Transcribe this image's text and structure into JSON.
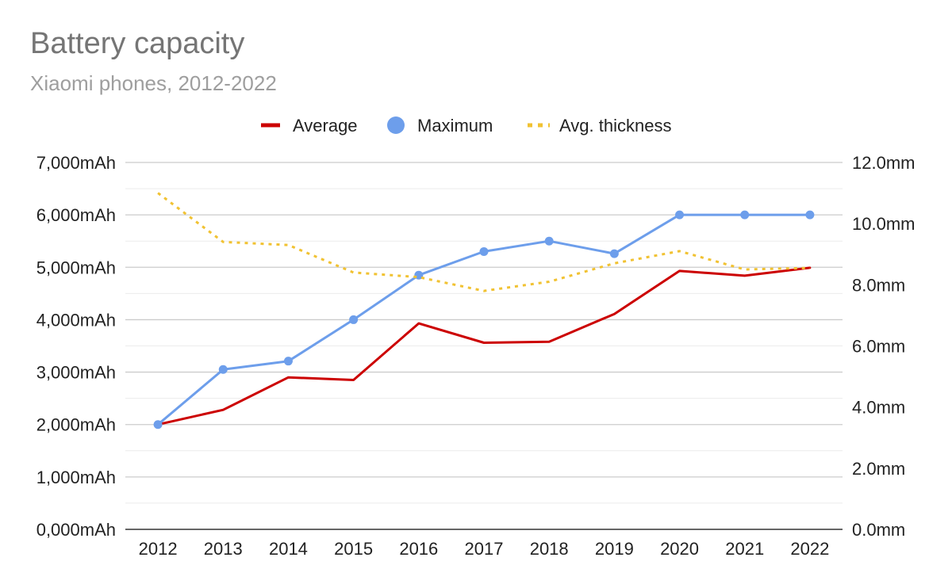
{
  "chart_data": {
    "type": "line",
    "title": "Battery capacity",
    "subtitle": "Xiaomi phones, 2012-2022",
    "categories": [
      "2012",
      "2013",
      "2014",
      "2015",
      "2016",
      "2017",
      "2018",
      "2019",
      "2020",
      "2021",
      "2022"
    ],
    "series": [
      {
        "name": "Average",
        "axis": "left",
        "style": "solid",
        "color": "#cc0000",
        "values": [
          2000,
          2280,
          2900,
          2850,
          3930,
          3560,
          3580,
          4110,
          4930,
          4840,
          4990
        ]
      },
      {
        "name": "Maximum",
        "axis": "left",
        "style": "solid-markers",
        "color": "#6d9eeb",
        "values": [
          2000,
          3050,
          3210,
          4000,
          4850,
          5300,
          5500,
          5260,
          6000,
          6000,
          6000
        ]
      },
      {
        "name": "Avg. thickness",
        "axis": "right",
        "style": "dotted",
        "color": "#f1c232",
        "values": [
          11.0,
          9.4,
          9.3,
          8.4,
          8.25,
          7.8,
          8.1,
          8.7,
          9.1,
          8.5,
          8.55
        ]
      }
    ],
    "y_left": {
      "min": 0,
      "max": 7000,
      "ticks": [
        {
          "value": 0,
          "label": "0,000mAh"
        },
        {
          "value": 1000,
          "label": "1,000mAh"
        },
        {
          "value": 2000,
          "label": "2,000mAh"
        },
        {
          "value": 3000,
          "label": "3,000mAh"
        },
        {
          "value": 4000,
          "label": "4,000mAh"
        },
        {
          "value": 5000,
          "label": "5,000mAh"
        },
        {
          "value": 6000,
          "label": "6,000mAh"
        },
        {
          "value": 7000,
          "label": "7,000mAh"
        }
      ]
    },
    "y_right": {
      "min": 0,
      "max": 12,
      "ticks": [
        {
          "value": 0,
          "label": "0.0mm"
        },
        {
          "value": 2,
          "label": "2.0mm"
        },
        {
          "value": 4,
          "label": "4.0mm"
        },
        {
          "value": 6,
          "label": "6.0mm"
        },
        {
          "value": 8,
          "label": "8.0mm"
        },
        {
          "value": 10,
          "label": "10.0mm"
        },
        {
          "value": 12,
          "label": "12.0mm"
        }
      ]
    },
    "grid": true,
    "legend_position": "top-center"
  }
}
